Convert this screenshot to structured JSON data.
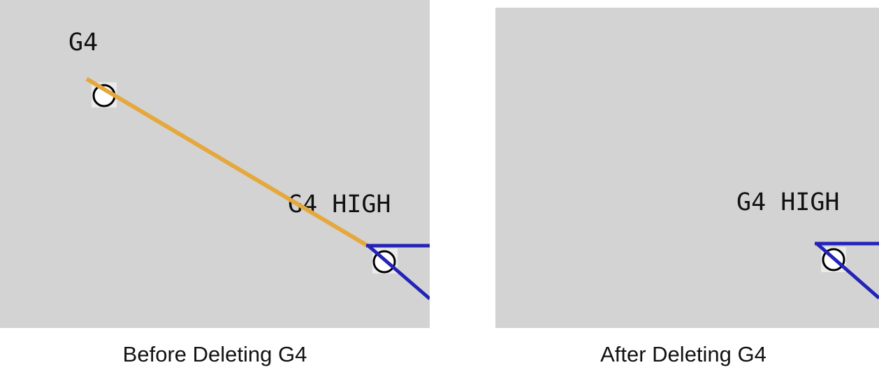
{
  "before": {
    "caption": "Before Deleting G4",
    "label_g4": "G4",
    "label_g4_high": "G4 HIGH",
    "deleted_line_color": "#e5a83c",
    "blue_line_color": "#2323b8"
  },
  "after": {
    "caption": "After Deleting G4",
    "label_g4_high": "G4 HIGH",
    "blue_line_color": "#2323b8"
  },
  "colors": {
    "background": "#d3d3d3",
    "node_fill": "#ffffff",
    "node_stroke": "#000000"
  },
  "icons": [
    "node-circle-icon"
  ]
}
